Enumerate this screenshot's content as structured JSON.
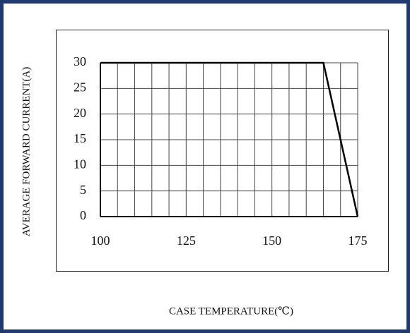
{
  "chart_data": {
    "type": "line",
    "xlabel": "CASE TEMPERATURE(℃)",
    "ylabel": "AVERAGE FORWARD CURRENT(A)",
    "x": [
      100,
      165,
      175
    ],
    "series": [
      {
        "color": "#000000",
        "values": [
          30,
          30,
          0
        ]
      }
    ],
    "xlim": [
      100,
      175
    ],
    "xticks": [
      100,
      125,
      150,
      175
    ],
    "xgrid": [
      100,
      105,
      110,
      115,
      120,
      125,
      130,
      135,
      140,
      145,
      150,
      155,
      160,
      165,
      170,
      175
    ],
    "ylim": [
      0,
      30
    ],
    "yticks": [
      0,
      5,
      10,
      15,
      20,
      25,
      30
    ],
    "grid": true
  }
}
